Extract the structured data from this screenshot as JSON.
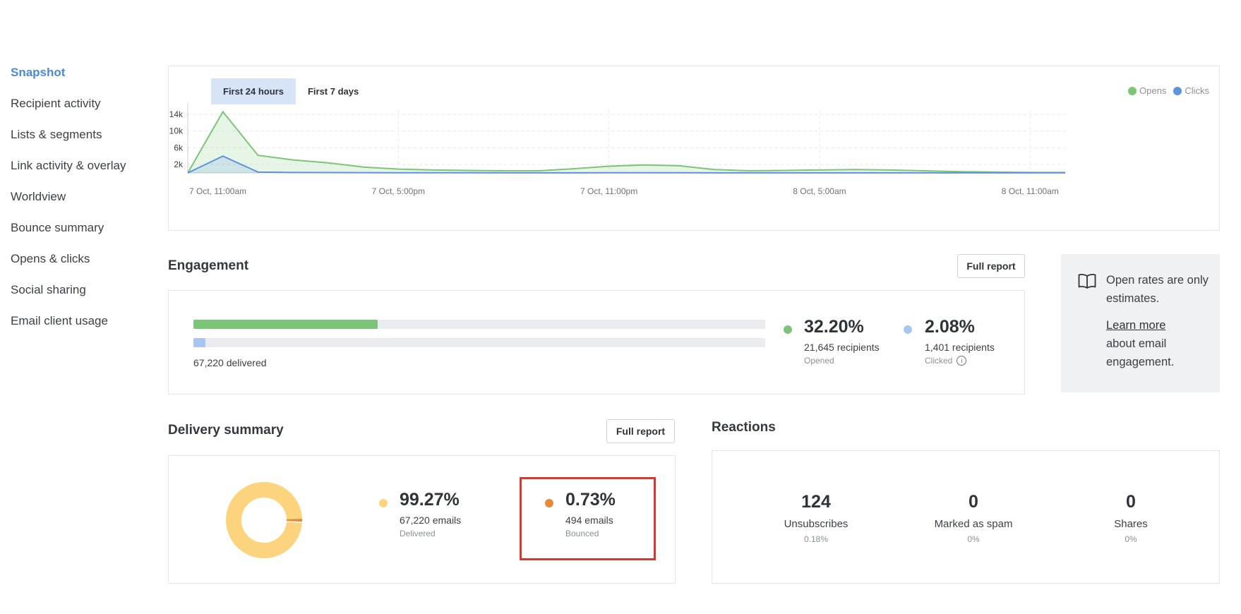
{
  "sidebar": {
    "items": [
      {
        "label": "Snapshot",
        "active": true
      },
      {
        "label": "Recipient activity"
      },
      {
        "label": "Lists & segments"
      },
      {
        "label": "Link activity & overlay"
      },
      {
        "label": "Worldview"
      },
      {
        "label": "Bounce summary"
      },
      {
        "label": "Opens & clicks"
      },
      {
        "label": "Social sharing"
      },
      {
        "label": "Email client usage"
      }
    ]
  },
  "chart_tabs": [
    "First 24 hours",
    "First 7 days"
  ],
  "legend": [
    {
      "name": "Opens",
      "color": "#7cc576"
    },
    {
      "name": "Clicks",
      "color": "#5b93e1"
    }
  ],
  "chart_data": {
    "type": "area",
    "y_ticks": [
      "14k",
      "10k",
      "6k",
      "2k"
    ],
    "ylim": [
      0,
      15000
    ],
    "x_labels": [
      "7 Oct, 11:00am",
      "7 Oct, 5:00pm",
      "7 Oct, 11:00pm",
      "8 Oct, 5:00am",
      "8 Oct, 11:00am"
    ],
    "x_hours": [
      0,
      1,
      2,
      3,
      4,
      5,
      6,
      7,
      8,
      9,
      10,
      11,
      12,
      13,
      14,
      15,
      16,
      17,
      18,
      19,
      20,
      21,
      22,
      23,
      24,
      25
    ],
    "series": [
      {
        "name": "Opens",
        "color": "#7cc576",
        "values": [
          0,
          14600,
          4200,
          3100,
          2400,
          1400,
          900,
          700,
          600,
          500,
          500,
          1000,
          1600,
          1900,
          1700,
          800,
          500,
          600,
          700,
          800,
          700,
          500,
          300,
          200,
          100,
          100
        ]
      },
      {
        "name": "Clicks",
        "color": "#5b93e1",
        "values": [
          0,
          4000,
          200,
          100,
          80,
          60,
          50,
          40,
          40,
          30,
          30,
          30,
          40,
          40,
          40,
          30,
          30,
          30,
          30,
          30,
          30,
          20,
          20,
          20,
          20,
          20
        ]
      }
    ]
  },
  "engagement": {
    "title": "Engagement",
    "full_report": "Full report",
    "opens_fraction": 0.322,
    "clicks_fraction": 0.0208,
    "delivered_text": "67,220 delivered",
    "opened": {
      "pct": "32.20%",
      "recipients": "21,645 recipients",
      "label": "Opened",
      "color": "#7cc576"
    },
    "clicked": {
      "pct": "2.08%",
      "recipients": "1,401 recipients",
      "label": "Clicked",
      "color": "#a9c6f0"
    }
  },
  "info": {
    "line1": "Open rates are only estimates.",
    "link": "Learn more",
    "line2": "about email engagement."
  },
  "delivery": {
    "title": "Delivery summary",
    "full_report": "Full report",
    "delivered_fraction": 0.9927,
    "bounced_fraction": 0.0073,
    "delivered": {
      "pct": "99.27%",
      "emails": "67,220 emails",
      "label": "Delivered",
      "color": "#fbd47d"
    },
    "bounced": {
      "pct": "0.73%",
      "emails": "494 emails",
      "label": "Bounced",
      "color": "#e8893a"
    }
  },
  "reactions": {
    "title": "Reactions",
    "items": [
      {
        "num": "124",
        "label": "Unsubscribes",
        "pct": "0.18%"
      },
      {
        "num": "0",
        "label": "Marked as spam",
        "pct": "0%"
      },
      {
        "num": "0",
        "label": "Shares",
        "pct": "0%"
      }
    ]
  }
}
